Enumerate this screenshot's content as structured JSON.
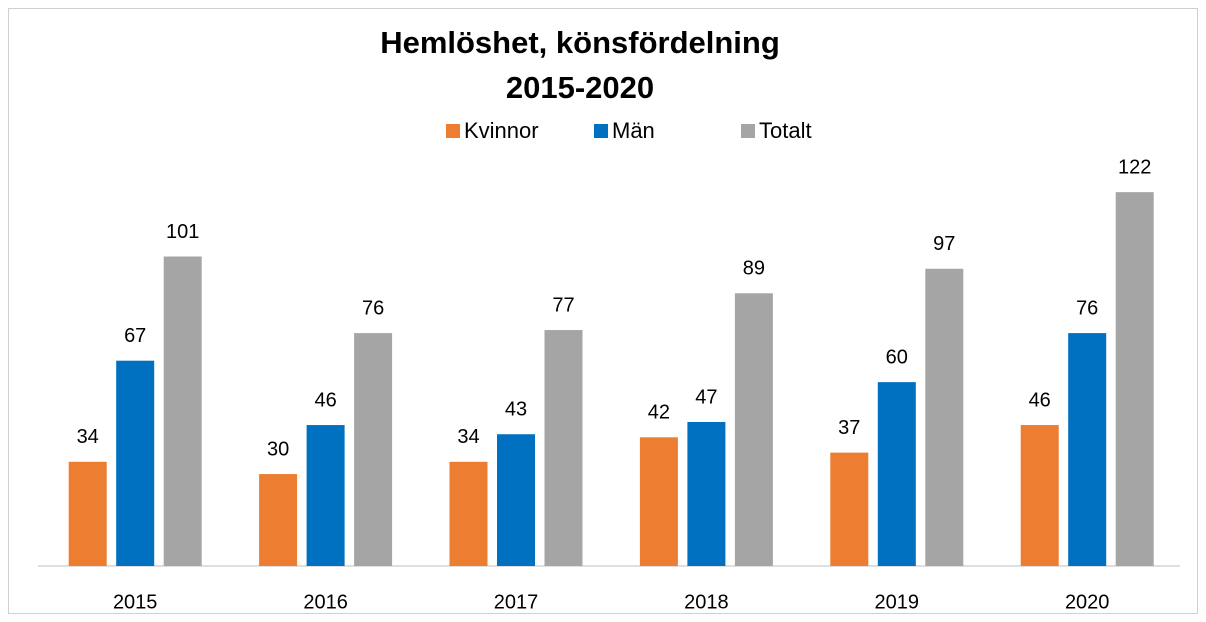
{
  "chart_data": {
    "type": "bar",
    "title": [
      "Hemlöshet, könsfördelning",
      "2015-2020"
    ],
    "categories": [
      "2015",
      "2016",
      "2017",
      "2018",
      "2019",
      "2020"
    ],
    "series": [
      {
        "name": "Kvinnor",
        "color": "#ed7d31",
        "values": [
          34,
          30,
          34,
          42,
          37,
          46
        ]
      },
      {
        "name": "Män",
        "color": "#0070c0",
        "values": [
          67,
          46,
          43,
          47,
          60,
          76
        ]
      },
      {
        "name": "Totalt",
        "color": "#a5a5a5",
        "values": [
          101,
          76,
          77,
          89,
          97,
          122
        ]
      }
    ],
    "ylim": [
      0,
      140
    ],
    "legend": "top"
  }
}
